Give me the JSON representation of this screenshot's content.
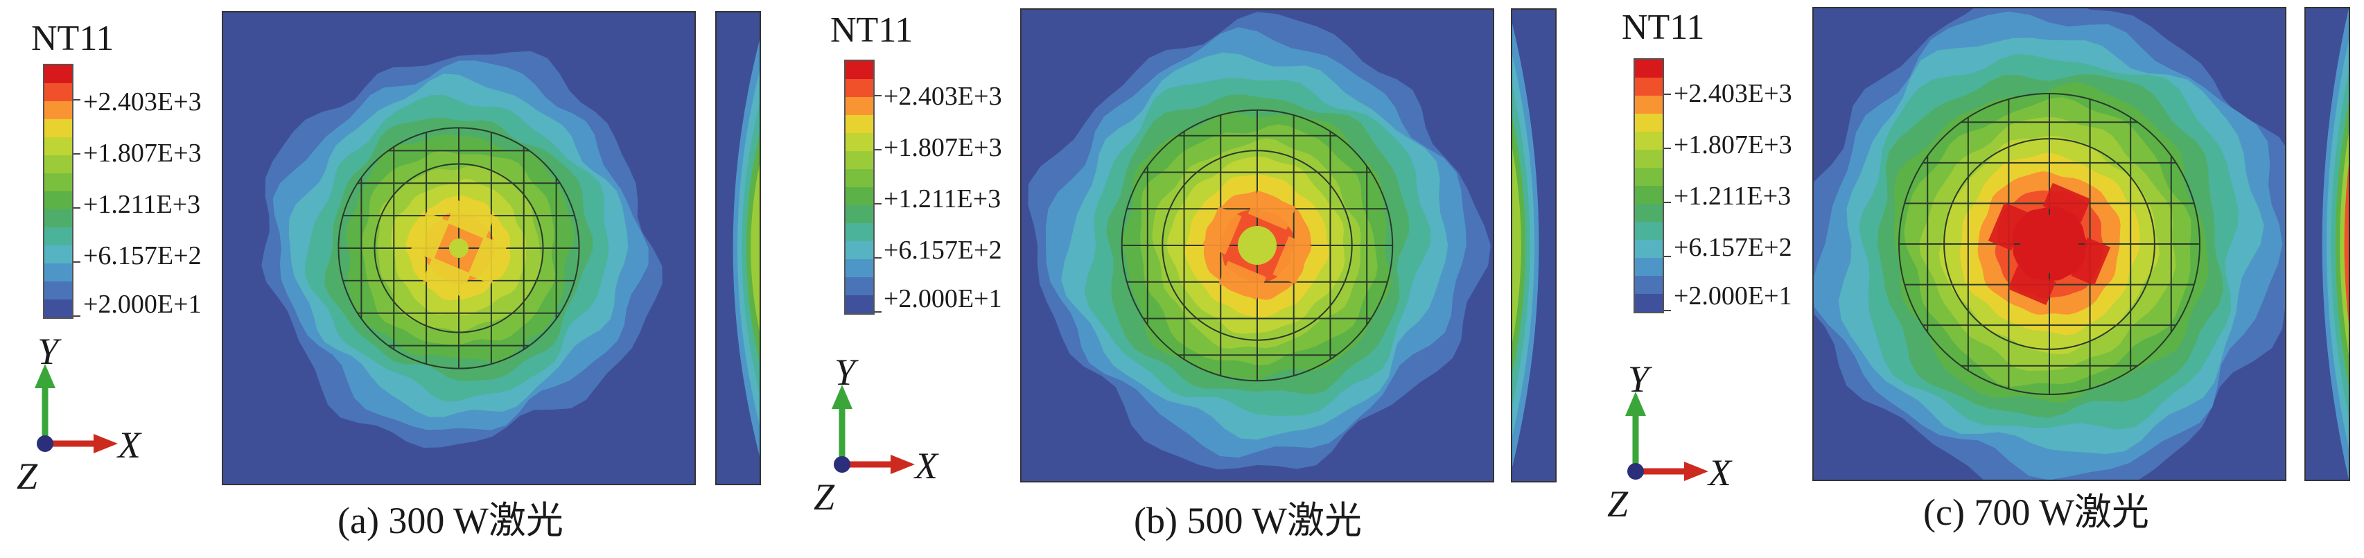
{
  "panels": [
    {
      "id": "a",
      "legend": {
        "title": "NT11",
        "ticks": [
          "+2.403E+3",
          "+1.807E+3",
          "+1.211E+3",
          "+6.157E+2",
          "+2.000E+1"
        ]
      },
      "axes": {
        "y": "Y",
        "x": "X",
        "z": "Z"
      },
      "caption": "(a) 300 W激光",
      "peak_level": 0.75
    },
    {
      "id": "b",
      "legend": {
        "title": "NT11",
        "ticks": [
          "+2.403E+3",
          "+1.807E+3",
          "+1.211E+3",
          "+6.157E+2",
          "+2.000E+1"
        ]
      },
      "axes": {
        "y": "Y",
        "x": "X",
        "z": "Z"
      },
      "caption": "(b) 500 W激光",
      "peak_level": 0.88
    },
    {
      "id": "c",
      "legend": {
        "title": "NT11",
        "ticks": [
          "+2.403E+3",
          "+1.807E+3",
          "+1.211E+3",
          "+6.157E+2",
          "+2.000E+1"
        ]
      },
      "axes": {
        "y": "Y",
        "x": "X",
        "z": "Z"
      },
      "caption": "(c) 700 W激光",
      "peak_level": 1.0
    }
  ],
  "colors": {
    "scale": [
      "#d7191c",
      "#f0502a",
      "#f99433",
      "#e8d230",
      "#bfd435",
      "#9ccb3a",
      "#7bbf3f",
      "#5cb246",
      "#4fad6a",
      "#4bb39a",
      "#56b3c2",
      "#4f96c8",
      "#4a73b8",
      "#3f519c"
    ],
    "background": "#3f4f97",
    "axis_x": "#cc2a1f",
    "axis_y": "#3aa63a",
    "axis_origin": "#2b2e7a"
  }
}
